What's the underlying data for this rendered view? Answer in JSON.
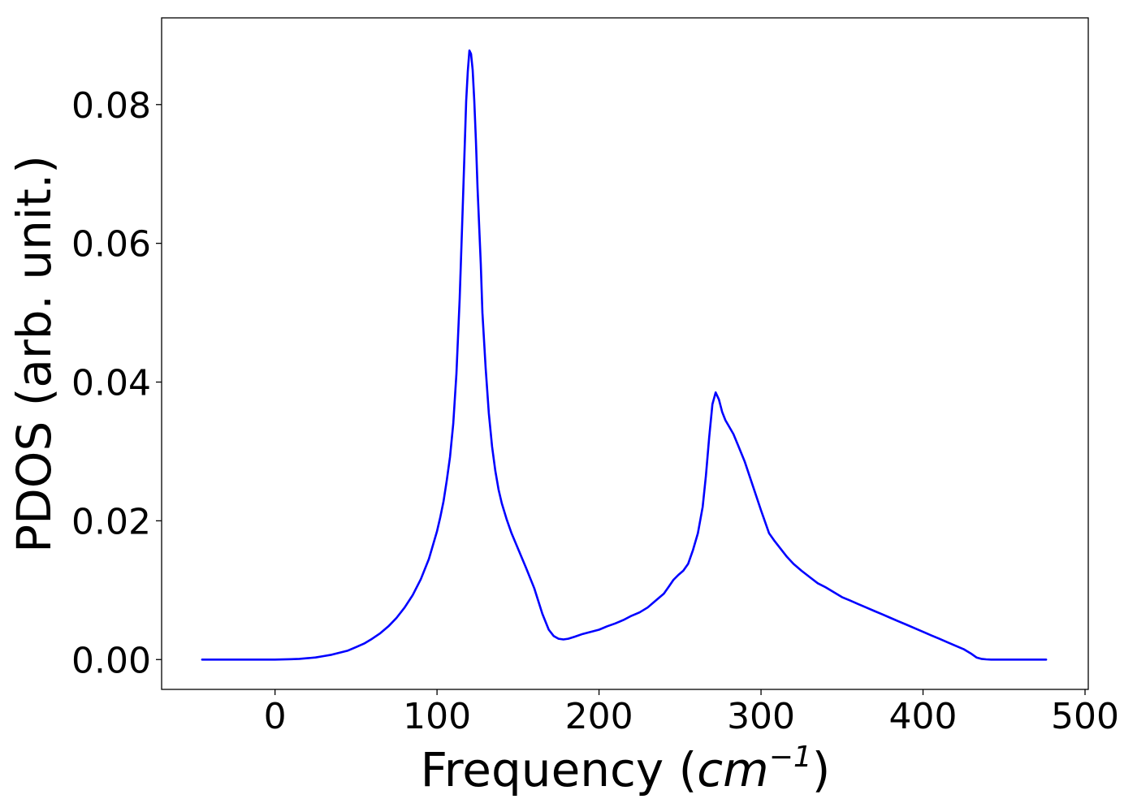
{
  "chart_data": {
    "type": "line",
    "title": "",
    "xlabel": {
      "prefix": "Frequency (",
      "unit_base": "cm",
      "unit_exponent": "−1",
      "suffix": ")"
    },
    "ylabel": "PDOS (arb. unit.)",
    "xlim": [
      -70,
      502
    ],
    "ylim": [
      -0.0043,
      0.0925
    ],
    "xticks": [
      0,
      100,
      200,
      300,
      400,
      500
    ],
    "xtick_labels": [
      "0",
      "100",
      "200",
      "300",
      "400",
      "500"
    ],
    "yticks": [
      0.0,
      0.02,
      0.04,
      0.06,
      0.08
    ],
    "ytick_labels": [
      "0.00",
      "0.02",
      "0.04",
      "0.06",
      "0.08"
    ],
    "grid": false,
    "legend": "none",
    "series": [
      {
        "color": "#0000ff",
        "x": [
          -45,
          0,
          5,
          10,
          15,
          20,
          25,
          30,
          35,
          40,
          45,
          50,
          55,
          60,
          65,
          70,
          75,
          80,
          85,
          90,
          95,
          100,
          102,
          104,
          106,
          108,
          110,
          112,
          114,
          116,
          118,
          119,
          120,
          121,
          122,
          123,
          124,
          125,
          127,
          128,
          130,
          132,
          134,
          136,
          138,
          140,
          143,
          146,
          150,
          155,
          160,
          165,
          169,
          172,
          175,
          178,
          181,
          185,
          190,
          195,
          200,
          205,
          210,
          215,
          220,
          225,
          230,
          235,
          240,
          243,
          246,
          249,
          252,
          255,
          258,
          261,
          264,
          266,
          268,
          270,
          272,
          274,
          276,
          278,
          280,
          283,
          286,
          290,
          295,
          300,
          305,
          308,
          312,
          316,
          320,
          325,
          330,
          335,
          340,
          345,
          350,
          355,
          360,
          365,
          370,
          375,
          380,
          385,
          390,
          395,
          400,
          405,
          410,
          415,
          420,
          425,
          430,
          433,
          436,
          439,
          442,
          446,
          450,
          476
        ],
        "y": [
          0.0,
          0.0,
          2e-05,
          5e-05,
          0.0001,
          0.0002,
          0.0003,
          0.0005,
          0.0007,
          0.001,
          0.0013,
          0.0018,
          0.0023,
          0.003,
          0.0038,
          0.0048,
          0.006,
          0.0075,
          0.0093,
          0.0116,
          0.0145,
          0.0185,
          0.0205,
          0.0228,
          0.0258,
          0.0292,
          0.034,
          0.0412,
          0.052,
          0.066,
          0.0805,
          0.0848,
          0.0878,
          0.0873,
          0.085,
          0.0805,
          0.0748,
          0.068,
          0.057,
          0.05,
          0.042,
          0.0355,
          0.0307,
          0.0272,
          0.0245,
          0.0225,
          0.0202,
          0.0182,
          0.016,
          0.0132,
          0.0103,
          0.0066,
          0.0043,
          0.0034,
          0.003,
          0.0029,
          0.003,
          0.0033,
          0.0037,
          0.004,
          0.0043,
          0.0048,
          0.0052,
          0.0057,
          0.0063,
          0.0068,
          0.0075,
          0.0085,
          0.0095,
          0.0105,
          0.0115,
          0.0122,
          0.0128,
          0.0138,
          0.0158,
          0.0182,
          0.022,
          0.0265,
          0.032,
          0.0368,
          0.0385,
          0.0375,
          0.0357,
          0.0345,
          0.0337,
          0.0325,
          0.0308,
          0.0285,
          0.025,
          0.0215,
          0.0182,
          0.0172,
          0.016,
          0.0148,
          0.0138,
          0.0128,
          0.0119,
          0.011,
          0.0104,
          0.0097,
          0.009,
          0.0085,
          0.008,
          0.0075,
          0.007,
          0.0065,
          0.006,
          0.0055,
          0.005,
          0.0045,
          0.004,
          0.0035,
          0.003,
          0.0025,
          0.002,
          0.0015,
          0.0008,
          0.0003,
          0.0001,
          3e-05,
          0.0,
          0.0,
          0.0,
          0.0
        ]
      }
    ]
  }
}
